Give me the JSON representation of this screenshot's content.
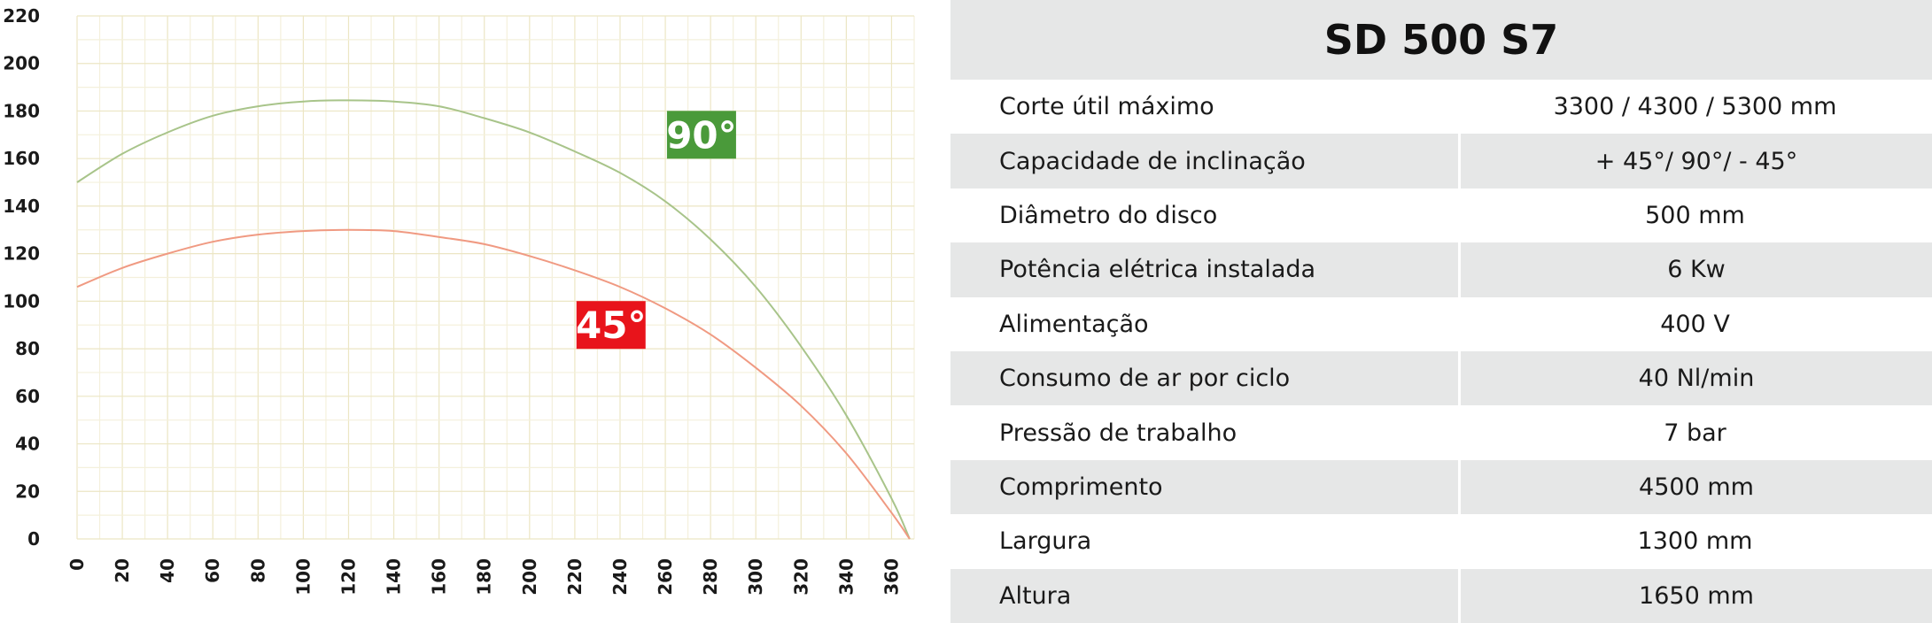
{
  "chart_data": {
    "type": "line",
    "xlim": [
      0,
      370
    ],
    "ylim": [
      0,
      220
    ],
    "x_ticks": [
      0,
      20,
      40,
      60,
      80,
      100,
      120,
      140,
      160,
      180,
      200,
      220,
      240,
      260,
      280,
      300,
      320,
      340,
      360
    ],
    "y_ticks": [
      0,
      20,
      40,
      60,
      80,
      100,
      120,
      140,
      160,
      180,
      200,
      220
    ],
    "grid": true,
    "series": [
      {
        "name": "90°",
        "color": "#a8c48a",
        "badge_color": "#4a9a3a",
        "x": [
          0,
          20,
          40,
          60,
          80,
          100,
          120,
          140,
          160,
          180,
          200,
          220,
          240,
          260,
          280,
          300,
          320,
          340,
          360,
          368
        ],
        "y": [
          150,
          162,
          171,
          178,
          182,
          184,
          184.5,
          184,
          182,
          177,
          171,
          163,
          154,
          142,
          126,
          106,
          81,
          52,
          17,
          0
        ]
      },
      {
        "name": "45°",
        "color": "#f09a82",
        "badge_color": "#e8141b",
        "x": [
          0,
          20,
          40,
          60,
          80,
          100,
          120,
          140,
          160,
          180,
          200,
          220,
          240,
          260,
          280,
          300,
          320,
          340,
          360,
          368
        ],
        "y": [
          106,
          114,
          120,
          125,
          128,
          129.5,
          130,
          129.5,
          127,
          124,
          119,
          113,
          106,
          97,
          86,
          72,
          56,
          36,
          11,
          0
        ]
      }
    ],
    "annotations": [
      {
        "text": "90°",
        "series": "90°",
        "x": 276,
        "y": 170
      },
      {
        "text": "45°",
        "series": "45°",
        "x": 236,
        "y": 90
      }
    ]
  },
  "spec_table": {
    "title": "SD 500 S7",
    "rows": [
      {
        "label": "Corte útil máximo",
        "value": "3300 / 4300 / 5300 mm"
      },
      {
        "label": "Capacidade de inclinação",
        "value": "+ 45°/ 90°/ - 45°"
      },
      {
        "label": "Diâmetro do disco",
        "value": "500 mm"
      },
      {
        "label": "Potência elétrica instalada",
        "value": "6 Kw"
      },
      {
        "label": "Alimentação",
        "value": "400 V"
      },
      {
        "label": "Consumo de ar por ciclo",
        "value": "40 Nl/min"
      },
      {
        "label": "Pressão de trabalho",
        "value": "7 bar"
      },
      {
        "label": "Comprimento",
        "value": "4500 mm"
      },
      {
        "label": "Largura",
        "value": "1300 mm"
      },
      {
        "label": "Altura",
        "value": "1650 mm"
      }
    ]
  }
}
